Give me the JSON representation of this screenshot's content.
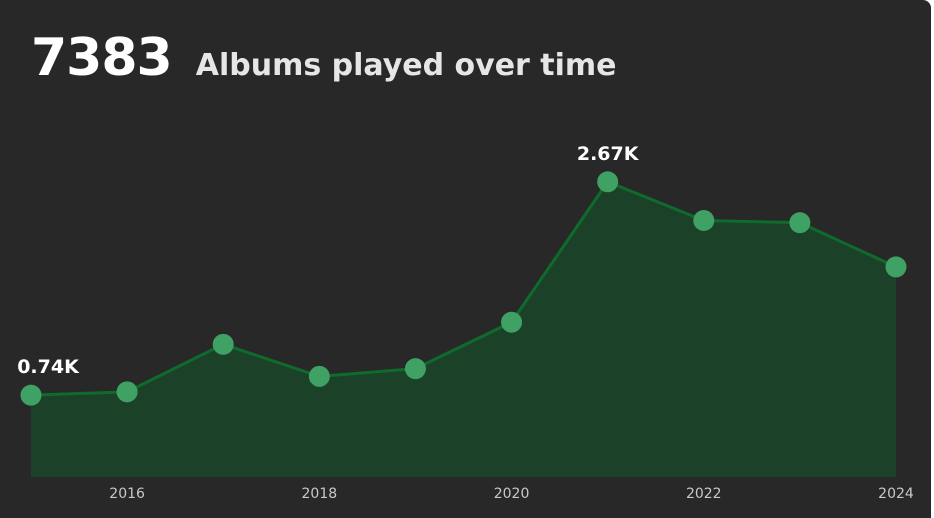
{
  "header": {
    "total": "7383",
    "title": "Albums played over time"
  },
  "colors": {
    "background": "#282828",
    "area_fill": "#1b4229",
    "line": "#0f6b2c",
    "marker": "#3fa163",
    "tick_text": "#c8c8c8",
    "label_text": "#ffffff"
  },
  "chart_data": {
    "type": "area",
    "x": [
      2015,
      2016,
      2017,
      2018,
      2019,
      2020,
      2021,
      2022,
      2023,
      2024
    ],
    "values": [
      740,
      770,
      1200,
      910,
      980,
      1400,
      2670,
      2320,
      2300,
      1900
    ],
    "xticks": [
      "2016",
      "2018",
      "2020",
      "2022",
      "2024"
    ],
    "xtick_values": [
      2016,
      2018,
      2020,
      2022,
      2024
    ],
    "xlim": [
      2015,
      2024
    ],
    "ylim": [
      0,
      3500
    ],
    "markers": true,
    "grid": false,
    "data_labels": [
      {
        "x": 2015,
        "text": "0.74K"
      },
      {
        "x": 2021,
        "text": "2.67K"
      }
    ]
  }
}
